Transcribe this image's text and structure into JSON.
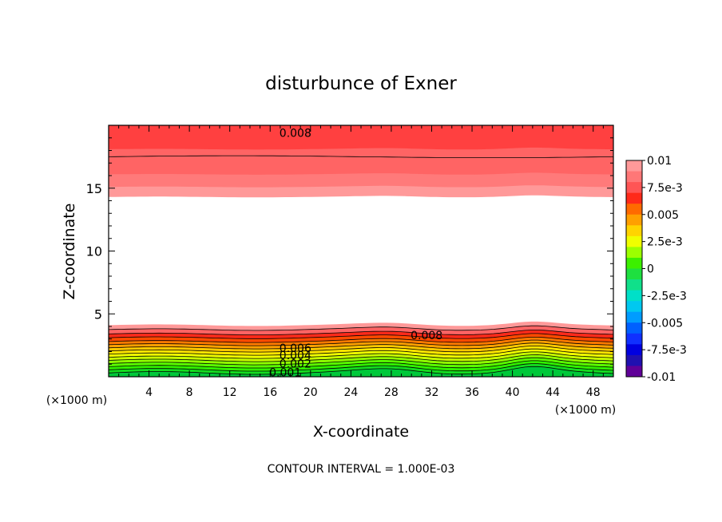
{
  "chart_data": {
    "type": "heatmap",
    "title": "disturbunce of Exner",
    "xlabel": "X-coordinate",
    "ylabel": "Z-coordinate",
    "x_unit": "(×1000 m)",
    "xlim": [
      0,
      50
    ],
    "ylim": [
      0,
      20
    ],
    "xticks": [
      4,
      8,
      12,
      16,
      20,
      24,
      28,
      32,
      36,
      40,
      44,
      48
    ],
    "yticks": [
      5,
      10,
      15
    ],
    "contour_interval_text": "CONTOUR INTERVAL = 1.000E-03",
    "contour_labels": [
      {
        "text": "0.008",
        "x": 18.5,
        "y": 19.4
      },
      {
        "text": "0.008",
        "x": 31.5,
        "y": 3.3
      },
      {
        "text": "0.006",
        "x": 18.5,
        "y": 2.3
      },
      {
        "text": "0.004",
        "x": 18.5,
        "y": 1.7
      },
      {
        "text": "0.002",
        "x": 18.5,
        "y": 1.05
      },
      {
        "text": "0.001",
        "x": 17.5,
        "y": 0.35
      }
    ],
    "colorbar": {
      "labels": [
        "0.01",
        "7.5e-3",
        "0.005",
        "2.5e-3",
        "0",
        "-2.5e-3",
        "-0.005",
        "-7.5e-3",
        "-0.01"
      ],
      "colors": [
        "#ff9999",
        "#ff7777",
        "#ff5555",
        "#ff2a1a",
        "#ff6a00",
        "#ffa000",
        "#ffd400",
        "#f0ff00",
        "#9cff00",
        "#3cf000",
        "#1ee040",
        "#10e08a",
        "#00e0c8",
        "#00c8f0",
        "#009cff",
        "#0060ff",
        "#1030ff",
        "#0000e0",
        "#2010b0",
        "#600098"
      ]
    },
    "bands": {
      "top": [
        {
          "lower": 18.1,
          "color": "#ff4040"
        },
        {
          "lower": 16.1,
          "color": "#ff6464"
        },
        {
          "lower": 15.1,
          "color": "#ff7a7a"
        },
        {
          "lower_base": 14.3,
          "color": "#ff9999"
        }
      ],
      "bottom_base": [
        4.1,
        3.75,
        3.4,
        3.1,
        2.8,
        2.55,
        2.3,
        2.05,
        1.8,
        1.55,
        1.3,
        1.05,
        0.8,
        0.55,
        0.3
      ],
      "bottom_colors": [
        "#ff9999",
        "#ff6464",
        "#ff2a1a",
        "#ff4a00",
        "#ff7a00",
        "#ffa000",
        "#ffc800",
        "#ffe600",
        "#f0ff00",
        "#c8ff00",
        "#90ff00",
        "#5aff00",
        "#30f000",
        "#14dc20",
        "#00c83a"
      ],
      "line_y_top": 17.5
    }
  }
}
